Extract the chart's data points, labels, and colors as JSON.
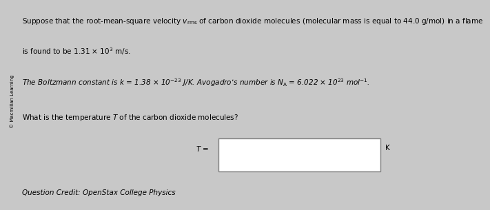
{
  "bg_color": "#c8c8c8",
  "sidebar_color": "#b0b0b0",
  "sidebar_text": "© Macmillan Learning",
  "line1": "Suppose that the root-mean-square velocity $v_{\\mathrm{rms}}$ of carbon dioxide molecules (molecular mass is equal to 44.0 g/mol) in a flame",
  "line2": "is found to be 1.31 $\\times$ 10$^{3}$ m/s.",
  "line3": "$\\it{The\\ Boltzmann\\ constant\\ is\\ k}$ = 1.38 $\\times$ 10$^{-23}$ J/K. Avogadro’s number is $N_{\\mathrm{A}}$ = 6.022 $\\times$ 10$^{23}$ mol$^{-1}$.",
  "line4": "What is the temperature $\\it{T}$ of the carbon dioxide molecules?",
  "teq": "$\\it{T}$ =",
  "unit": "K",
  "credit": "Question Credit: OpenStax College Physics",
  "fs_main": 7.5,
  "fs_credit": 7.5
}
